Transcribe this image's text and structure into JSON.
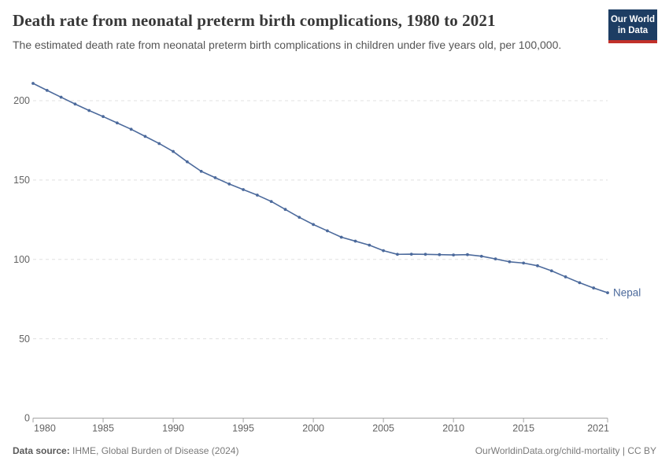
{
  "header": {
    "title": "Death rate from neonatal preterm birth complications, 1980 to 2021",
    "subtitle": "The estimated death rate from neonatal preterm birth complications in children under five years old, per 100,000."
  },
  "logo": {
    "line1": "Our World",
    "line2": "in Data"
  },
  "footer": {
    "source_label": "Data source:",
    "source_value": " IHME, Global Burden of Disease (2024)",
    "attribution": "OurWorldinData.org/child-mortality | CC BY"
  },
  "colors": {
    "line": "#4C6A9C",
    "axis": "#a3a3a3",
    "grid": "#e0e0e0",
    "tick_text": "#636363",
    "logo_bg": "#1d3d63",
    "logo_stripe": "#c1302a"
  },
  "chart_data": {
    "type": "line",
    "title": "Death rate from neonatal preterm birth complications, 1980 to 2021",
    "xlabel": "",
    "ylabel": "",
    "xlim": [
      1980,
      2021
    ],
    "ylim": [
      0,
      215
    ],
    "xticks": [
      1980,
      1985,
      1990,
      1995,
      2000,
      2005,
      2010,
      2015,
      2021
    ],
    "yticks": [
      0,
      50,
      100,
      150,
      200
    ],
    "grid": "horizontal-dashed",
    "legend_position": "end-of-line-label",
    "x": [
      1980,
      1981,
      1982,
      1983,
      1984,
      1985,
      1986,
      1987,
      1988,
      1989,
      1990,
      1991,
      1992,
      1993,
      1994,
      1995,
      1996,
      1997,
      1998,
      1999,
      2000,
      2001,
      2002,
      2003,
      2004,
      2005,
      2006,
      2007,
      2008,
      2009,
      2010,
      2011,
      2012,
      2013,
      2014,
      2015,
      2016,
      2017,
      2018,
      2019,
      2020,
      2021
    ],
    "series": [
      {
        "name": "Nepal",
        "color": "#4C6A9C",
        "values": [
          210.9,
          206.5,
          202.2,
          197.9,
          193.8,
          190.0,
          186.0,
          182.0,
          177.5,
          173.0,
          168.0,
          161.5,
          155.5,
          151.5,
          147.5,
          144.0,
          140.5,
          136.5,
          131.5,
          126.5,
          122.0,
          118.0,
          114.0,
          111.5,
          109.0,
          105.5,
          103.2,
          103.3,
          103.2,
          103.0,
          102.8,
          103.0,
          102.0,
          100.3,
          98.5,
          97.7,
          96.0,
          92.8,
          89.0,
          85.3,
          82.0,
          79.0
        ]
      }
    ]
  }
}
